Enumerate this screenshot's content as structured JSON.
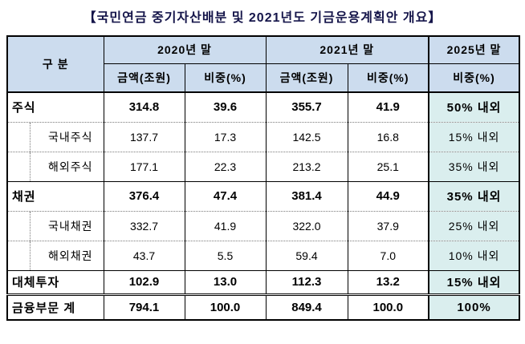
{
  "title": "【국민연금 중기자산배분 및 2021년도 기금운용계획안 개요】",
  "colors": {
    "header_bg": "#ccdcee",
    "plan_column_bg": "#daeeee",
    "title_color": "#15154a",
    "border_color": "#000000"
  },
  "table": {
    "header": {
      "category": "구 분",
      "y2020": "2020년 말",
      "y2021": "2021년 말",
      "y2025": "2025년 말",
      "amount": "금액(조원)",
      "weight": "비중(%)"
    },
    "rows": [
      {
        "label": "주식",
        "values": [
          "314.8",
          "39.6",
          "355.7",
          "41.9",
          "50% 내외"
        ]
      },
      {
        "label": "국내주식",
        "values": [
          "137.7",
          "17.3",
          "142.5",
          "16.8",
          "15% 내외"
        ]
      },
      {
        "label": "해외주식",
        "values": [
          "177.1",
          "22.3",
          "213.2",
          "25.1",
          "35% 내외"
        ]
      },
      {
        "label": "채권",
        "values": [
          "376.4",
          "47.4",
          "381.4",
          "44.9",
          "35% 내외"
        ]
      },
      {
        "label": "국내채권",
        "values": [
          "332.7",
          "41.9",
          "322.0",
          "37.9",
          "25% 내외"
        ]
      },
      {
        "label": "해외채권",
        "values": [
          "43.7",
          "5.5",
          "59.4",
          "7.0",
          "10% 내외"
        ]
      },
      {
        "label": "대체투자",
        "values": [
          "102.9",
          "13.0",
          "112.3",
          "13.2",
          "15% 내외"
        ]
      },
      {
        "label": "금융부문 계",
        "values": [
          "794.1",
          "100.0",
          "849.4",
          "100.0",
          "100%"
        ]
      }
    ]
  }
}
